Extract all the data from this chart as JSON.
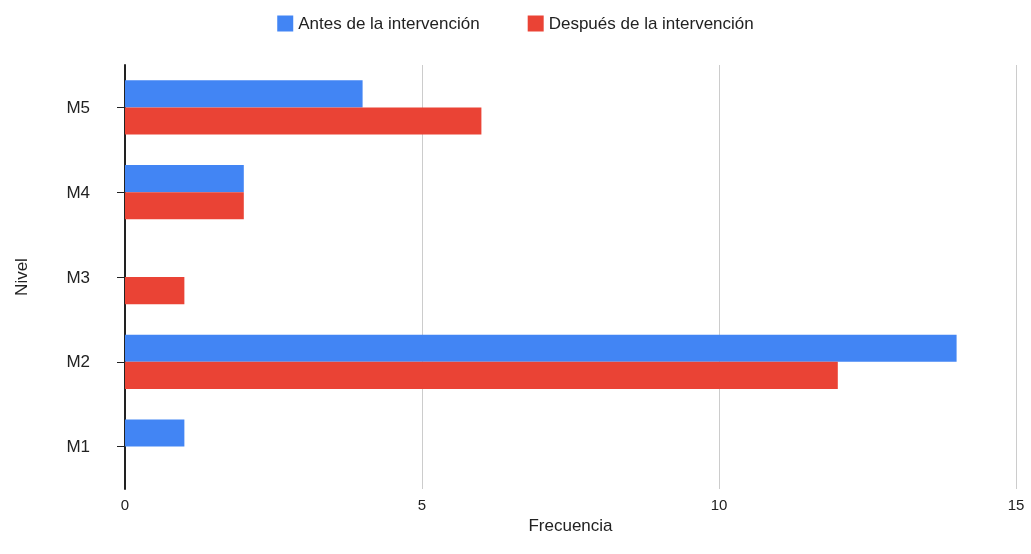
{
  "chart_data": {
    "type": "bar",
    "orientation": "horizontal",
    "xlabel": "Frecuencia",
    "ylabel": "Nivel",
    "categories": [
      "M5",
      "M4",
      "M3",
      "M2",
      "M1"
    ],
    "series": [
      {
        "name": "Antes de la intervención",
        "color": "#4285f4",
        "values": [
          4,
          2,
          0,
          14,
          1
        ]
      },
      {
        "name": "Después de la intervención",
        "color": "#ea4335",
        "values": [
          6,
          2,
          1,
          12,
          0
        ]
      }
    ],
    "xlim": [
      0,
      15
    ],
    "xticks": [
      0,
      5,
      10,
      15
    ],
    "grid": "x",
    "legend": "top"
  }
}
